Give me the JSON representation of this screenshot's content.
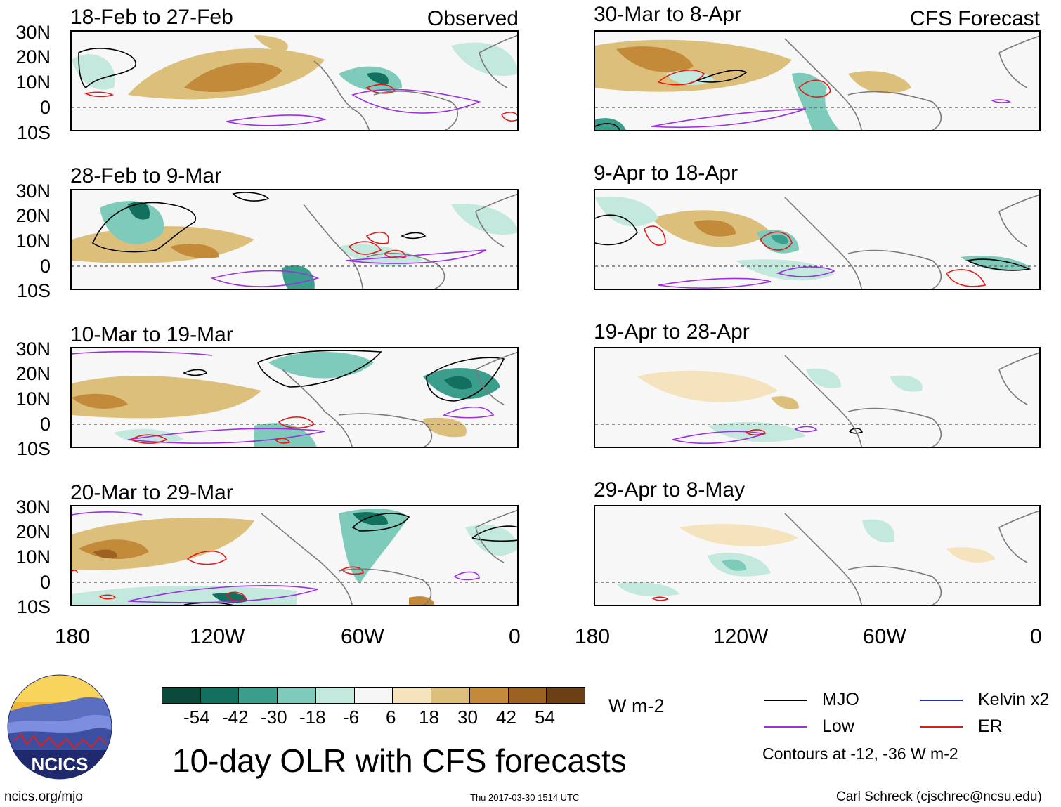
{
  "panels_left": [
    {
      "period": "18-Feb to 27-Feb",
      "corner": "Observed"
    },
    {
      "period": "28-Feb to 9-Mar",
      "corner": ""
    },
    {
      "period": "10-Mar to 19-Mar",
      "corner": ""
    },
    {
      "period": "20-Mar to 29-Mar",
      "corner": ""
    }
  ],
  "panels_right": [
    {
      "period": "30-Mar to 8-Apr",
      "corner": "CFS Forecast"
    },
    {
      "period": "9-Apr to 18-Apr",
      "corner": ""
    },
    {
      "period": "19-Apr to 28-Apr",
      "corner": ""
    },
    {
      "period": "29-Apr to 8-May",
      "corner": ""
    }
  ],
  "lat_labels": [
    "30N",
    "20N",
    "10N",
    "0",
    "10S"
  ],
  "lon_labels": [
    "180",
    "120W",
    "60W",
    "0"
  ],
  "colorbar": {
    "colors": [
      "#0b4a3a",
      "#13705f",
      "#3b9d8c",
      "#7ecbbb",
      "#c3e8de",
      "#f6f6f6",
      "#f4e3bd",
      "#ddbf7c",
      "#c38a3a",
      "#9c6221",
      "#6b4015"
    ],
    "ticks": [
      "-54",
      "-42",
      "-30",
      "-18",
      "-6",
      "6",
      "18",
      "30",
      "42",
      "54"
    ],
    "units": "W m-2"
  },
  "title": "10-day OLR with CFS forecasts",
  "legend": {
    "mjo": {
      "label": "MJO",
      "color": "#000000"
    },
    "low": {
      "label": "Low",
      "color": "#9a30e0"
    },
    "kelvin": {
      "label": "Kelvin x2",
      "color": "#1a2bd6"
    },
    "er": {
      "label": "ER",
      "color": "#e01a1a"
    },
    "note": "Contours at -12, -36 W m-2"
  },
  "logo": {
    "text": "NCICS"
  },
  "footer": {
    "url": "ncics.org/mjo",
    "timestamp": "Thu 2017-03-30 1514 UTC",
    "author": "Carl Schreck (cjschrec@ncsu.edu)"
  }
}
